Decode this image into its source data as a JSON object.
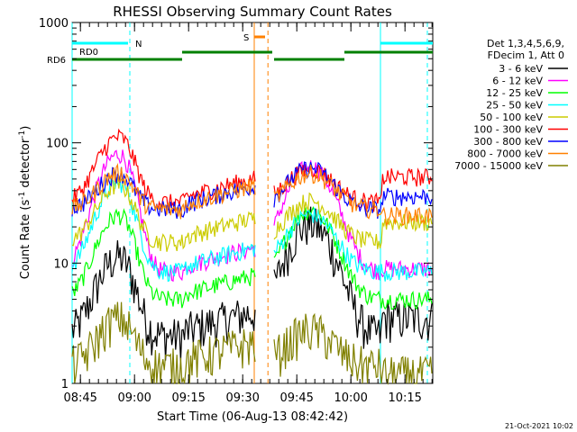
{
  "chart_data": {
    "type": "line",
    "title": "RHESSI Observing Summary Count Rates",
    "xlabel": "Start Time (06-Aug-13 08:42:42)",
    "ylabel_main": "Count Rate (s",
    "ylabel_sup1": "-1",
    "ylabel_mid": " detector",
    "ylabel_sup2": "-1",
    "ylabel_end": ")",
    "yscale": "log",
    "ylim": [
      1,
      1000
    ],
    "xlim_minutes": [
      0,
      100
    ],
    "x_tick_labels": [
      "08:45",
      "09:00",
      "09:15",
      "09:30",
      "09:45",
      "10:00",
      "10:15"
    ],
    "x_tick_minutes": [
      2.3,
      17.3,
      32.3,
      47.3,
      62.3,
      77.3,
      92.3
    ],
    "y_tick_labels": [
      "1",
      "10",
      "100",
      "1000"
    ],
    "y_tick_values": [
      1,
      10,
      100,
      1000
    ],
    "legend_header": [
      "Det 1,3,4,5,6,9,",
      "FDecim 1, Att 0"
    ],
    "legend_placement": "right",
    "series": [
      {
        "name": "3 - 6 keV",
        "color": "#000000",
        "base": 2.5,
        "flare": [
          4.5,
          8.5
        ],
        "decay_end": 3.5
      },
      {
        "name": "6 - 12 keV",
        "color": "#ff00ff",
        "base": 8.5,
        "flare": [
          9.5,
          7.5
        ],
        "decay_end": 9.0
      },
      {
        "name": "12 - 25 keV",
        "color": "#00ff00",
        "base": 5.0,
        "flare": [
          5.0,
          5.5
        ],
        "decay_end": 5.0
      },
      {
        "name": "25 - 50 keV",
        "color": "#00ffff",
        "base": 8.5,
        "flare": [
          5.5,
          3.0
        ],
        "decay_end": 8.5
      },
      {
        "name": "50 - 100 keV",
        "color": "#cccc00",
        "base": 15,
        "flare": [
          3.0,
          2.2
        ],
        "decay_end": 22
      },
      {
        "name": "100 - 300 keV",
        "color": "#ff0000",
        "base": 32,
        "flare": [
          3.5,
          1.9
        ],
        "decay_end": 52
      },
      {
        "name": "300 - 800 keV",
        "color": "#0000ff",
        "base": 28,
        "flare": [
          2.0,
          2.2
        ],
        "decay_end": 36
      },
      {
        "name": "800 - 7000 keV",
        "color": "#ff8000",
        "base": 28,
        "flare": [
          2.0,
          2.0
        ],
        "decay_end": 25
      },
      {
        "name": "7000 - 15000 keV",
        "color": "#808000",
        "base": 1.4,
        "flare": [
          2.5,
          2.0
        ],
        "decay_end": 1.2
      }
    ],
    "annotations": {
      "rd0_label": "RD0",
      "rd6_label": "RD6",
      "n_label": "N",
      "s_label": "S"
    },
    "colors": {
      "axis": "#000000",
      "night_cyan": "#00ffff",
      "rd6_green": "#008000",
      "saa_orange": "#ff8000"
    }
  },
  "footer": {
    "timestamp": "21-Oct-2021 10:02"
  }
}
